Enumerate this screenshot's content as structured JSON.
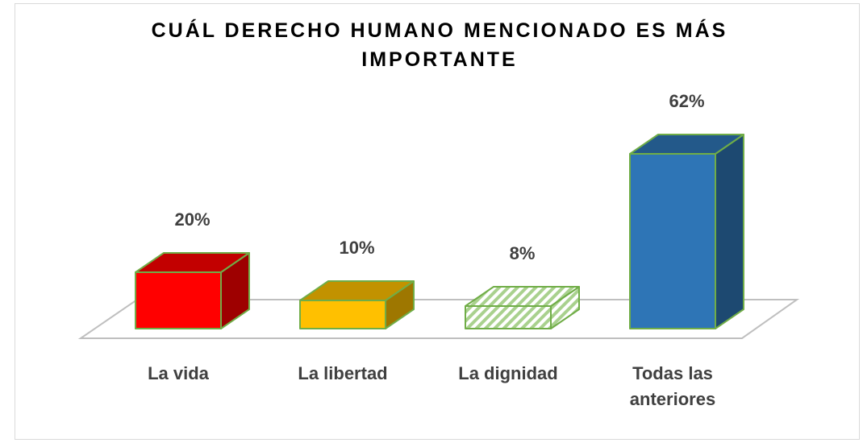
{
  "chart_data": {
    "type": "bar3d",
    "title": "CUÁL DERECHO HUMANO MENCIONADO ES MÁS IMPORTANTE",
    "categories": [
      "La vida",
      "La libertad",
      "La dignidad",
      "Todas las anteriores"
    ],
    "values": [
      20,
      10,
      8,
      62
    ],
    "value_labels": [
      "20%",
      "10%",
      "8%",
      "62%"
    ],
    "colors": [
      "#ff0000",
      "#ffc000",
      "#a9d18e",
      "#2e75b6"
    ],
    "hatched": [
      false,
      false,
      true,
      false
    ],
    "edge_color": "#70ad47"
  }
}
